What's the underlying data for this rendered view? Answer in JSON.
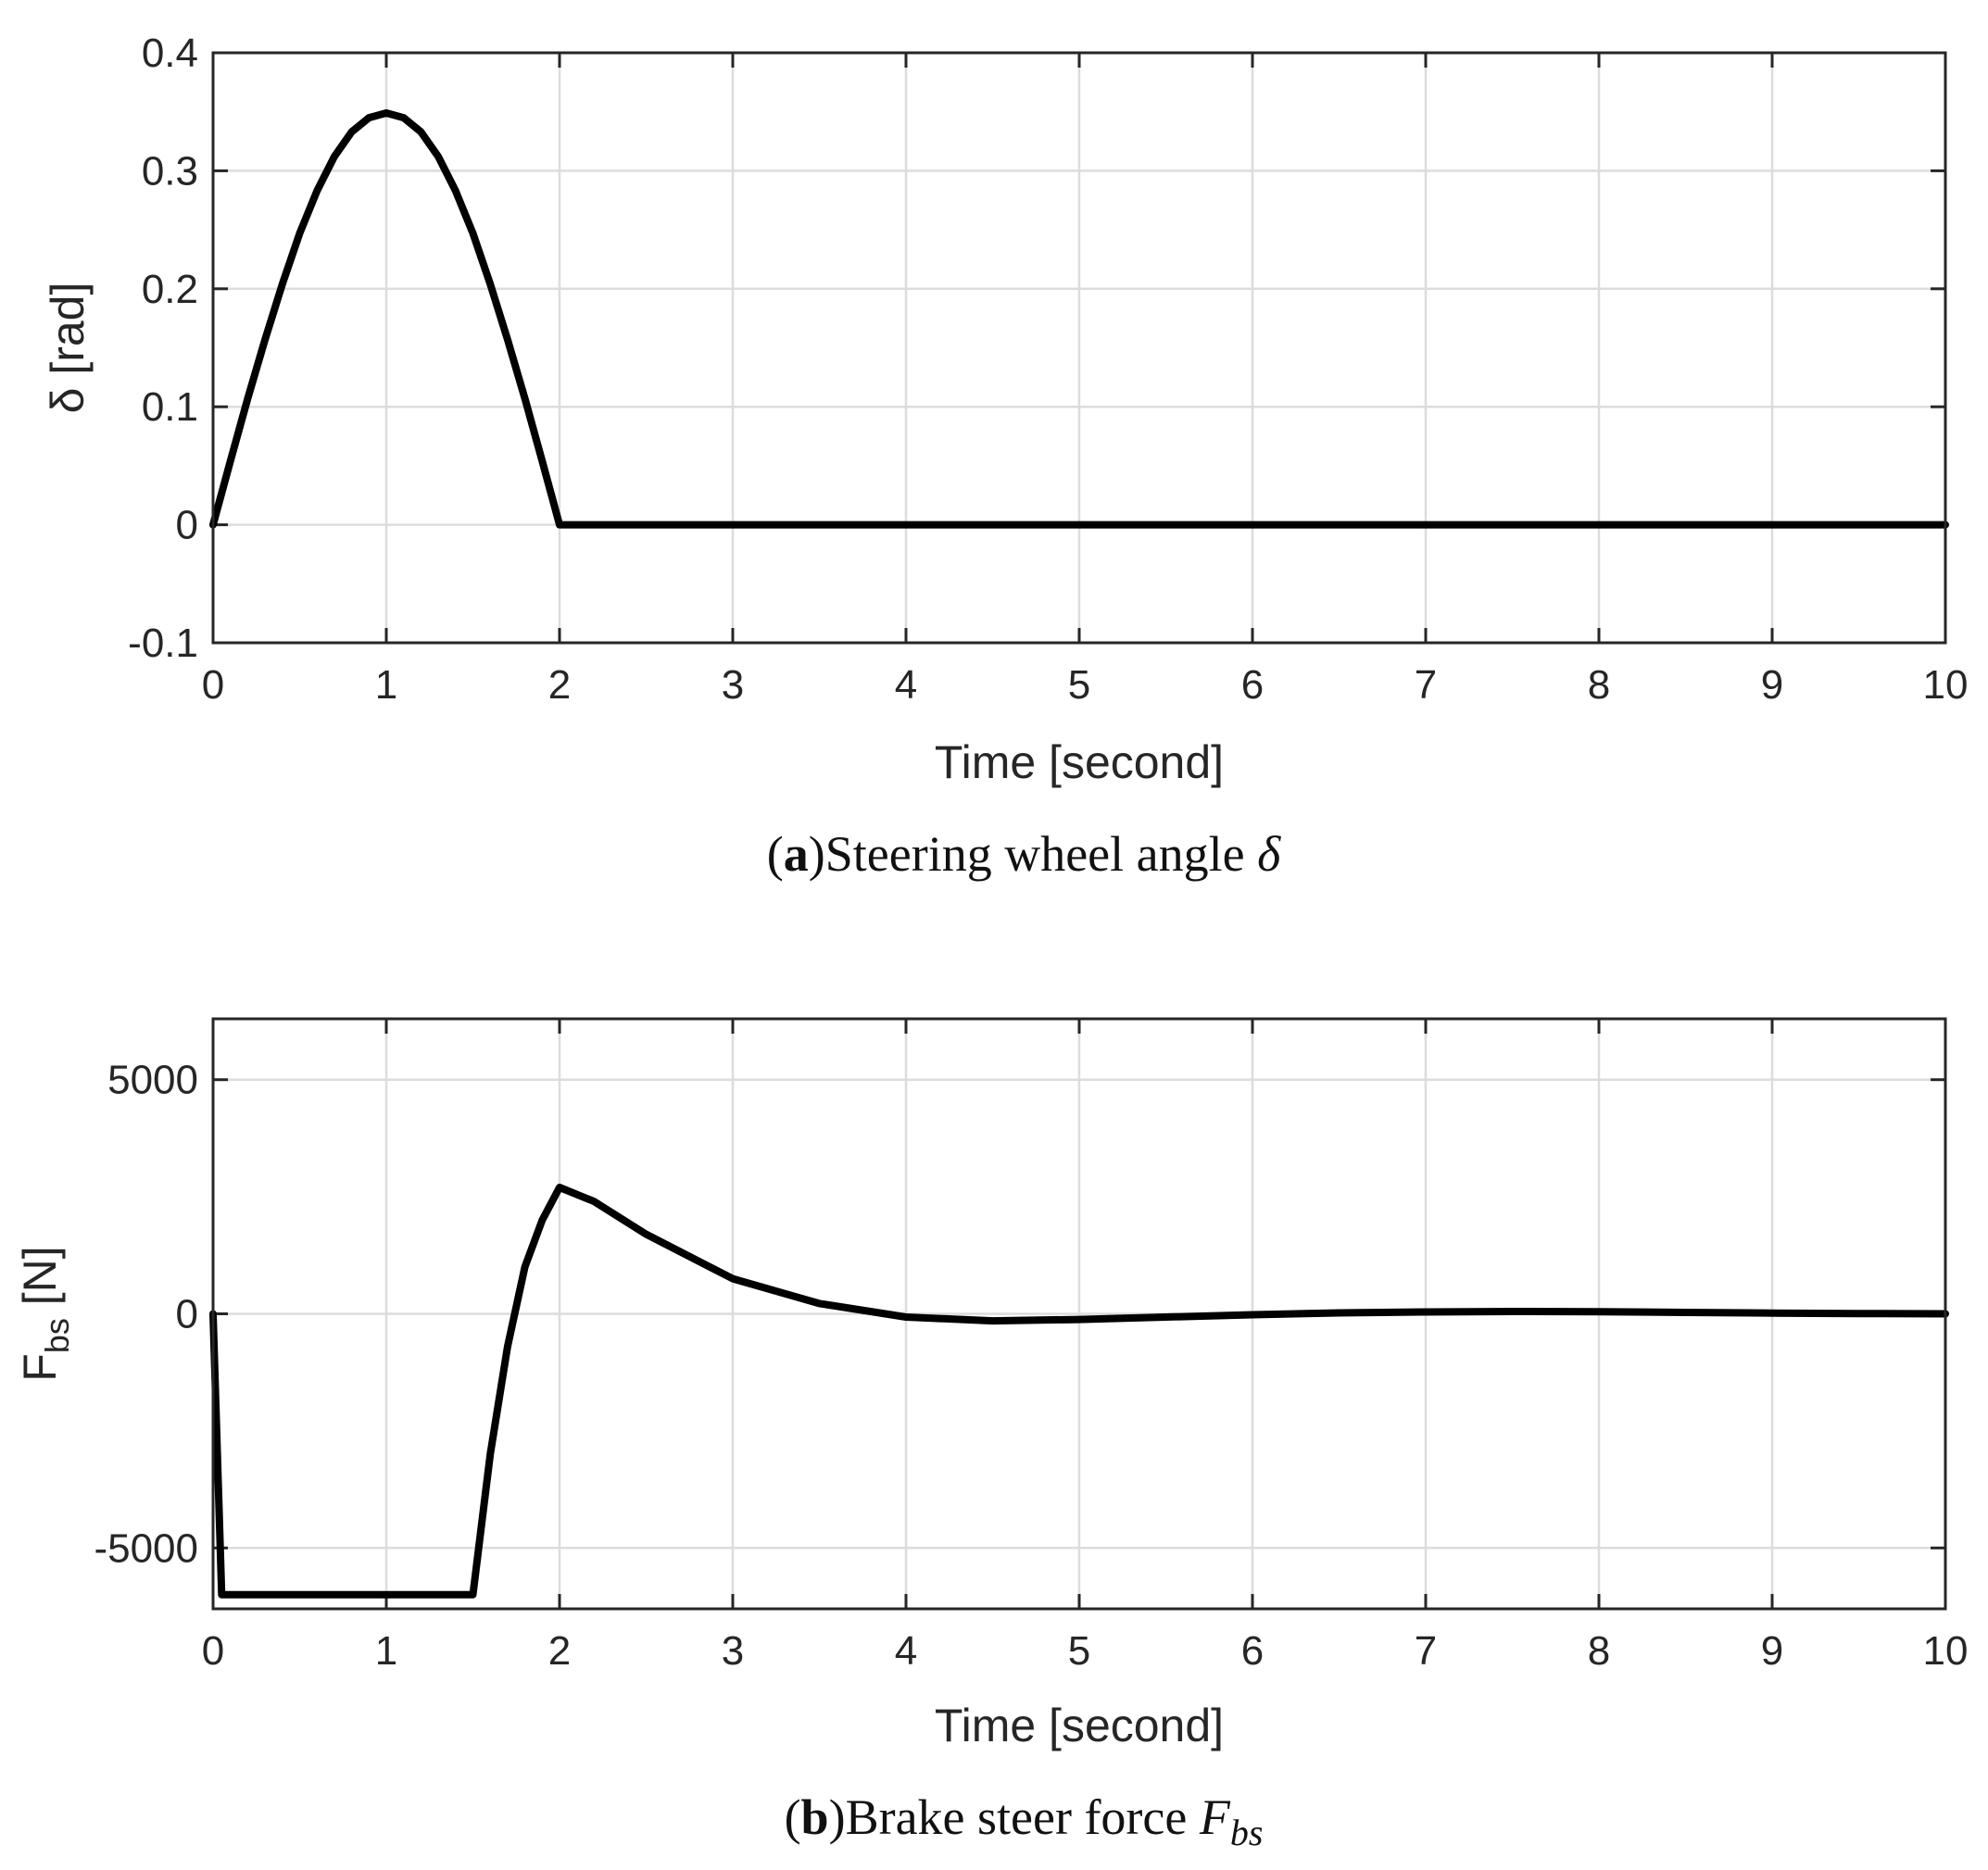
{
  "chart_data": [
    {
      "type": "line",
      "xlabel": "Time [second]",
      "ylabel": "δ [rad]",
      "xlim": [
        0,
        10
      ],
      "ylim": [
        -0.1,
        0.4
      ],
      "xticks": [
        0,
        1,
        2,
        3,
        4,
        5,
        6,
        7,
        8,
        9,
        10
      ],
      "xtick_labels": [
        "0",
        "1",
        "2",
        "3",
        "4",
        "5",
        "6",
        "7",
        "8",
        "9",
        "10"
      ],
      "yticks": [
        -0.1,
        0,
        0.1,
        0.2,
        0.3,
        0.4
      ],
      "ytick_labels": [
        "-0.1",
        "0",
        "0.1",
        "0.2",
        "0.3",
        "0.4"
      ],
      "grid": true,
      "caption_tag": "a",
      "caption_text": "Steering wheel angle",
      "caption_symbol": "δ",
      "series": [
        {
          "name": "δ",
          "color": "#000000",
          "x": [
            0,
            0.1,
            0.2,
            0.3,
            0.4,
            0.5,
            0.6,
            0.7,
            0.8,
            0.9,
            1.0,
            1.1,
            1.2,
            1.3,
            1.4,
            1.5,
            1.6,
            1.7,
            1.8,
            1.9,
            2.0,
            3,
            4,
            5,
            6,
            7,
            8,
            9,
            10
          ],
          "y": [
            0,
            0.054,
            0.107,
            0.157,
            0.204,
            0.247,
            0.283,
            0.312,
            0.333,
            0.345,
            0.349,
            0.345,
            0.333,
            0.312,
            0.283,
            0.247,
            0.204,
            0.157,
            0.107,
            0.054,
            0,
            0,
            0,
            0,
            0,
            0,
            0,
            0,
            0
          ]
        }
      ]
    },
    {
      "type": "line",
      "xlabel": "Time [second]",
      "ylabel_main": "F",
      "ylabel_sub": "bs",
      "ylabel_unit": " [N]",
      "xlim": [
        0,
        10
      ],
      "ylim": [
        -6300,
        6300
      ],
      "xticks": [
        0,
        1,
        2,
        3,
        4,
        5,
        6,
        7,
        8,
        9,
        10
      ],
      "xtick_labels": [
        "0",
        "1",
        "2",
        "3",
        "4",
        "5",
        "6",
        "7",
        "8",
        "9",
        "10"
      ],
      "yticks": [
        -5000,
        0,
        5000
      ],
      "ytick_labels": [
        "-5000",
        "0",
        "5000"
      ],
      "grid": true,
      "caption_tag": "b",
      "caption_text": "Brake steer force",
      "caption_symbol": "F",
      "caption_symbol_sub": "bs",
      "series": [
        {
          "name": "F_bs",
          "color": "#000000",
          "x": [
            0,
            0.05,
            1.5,
            1.6,
            1.7,
            1.8,
            1.9,
            2.0,
            2.2,
            2.5,
            3.0,
            3.5,
            4.0,
            4.5,
            5.0,
            5.5,
            6.0,
            6.5,
            7.0,
            7.5,
            8.0,
            8.5,
            9.0,
            9.5,
            10
          ],
          "y": [
            0,
            -6000,
            -6000,
            -3000,
            -700,
            1000,
            2000,
            2700,
            2400,
            1700,
            750,
            220,
            -70,
            -150,
            -120,
            -70,
            -20,
            20,
            40,
            50,
            45,
            30,
            15,
            5,
            0
          ]
        }
      ]
    }
  ]
}
